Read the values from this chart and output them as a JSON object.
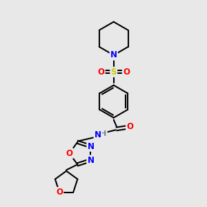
{
  "bg_color": "#e8e8e8",
  "bond_color": "#000000",
  "atom_colors": {
    "N": "#0000ff",
    "O": "#ff0000",
    "S": "#cccc00",
    "H": "#708090",
    "C": "#000000"
  },
  "line_width": 1.5,
  "font_size": 8.5,
  "fig_size": [
    3.0,
    3.0
  ],
  "dpi": 100
}
